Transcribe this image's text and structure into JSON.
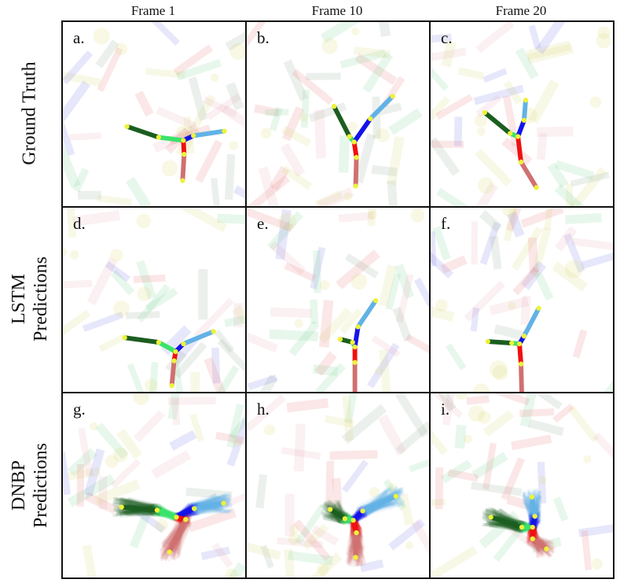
{
  "columns": [
    "Frame 1",
    "Frame 10",
    "Frame 20"
  ],
  "rows": [
    {
      "label_lines": [
        "Ground Truth"
      ]
    },
    {
      "label_lines": [
        "LSTM",
        "Predictions"
      ]
    },
    {
      "label_lines": [
        "DNBP",
        "Predictions"
      ]
    }
  ],
  "panels": [
    "a.",
    "b.",
    "c.",
    "d.",
    "e.",
    "f.",
    "g.",
    "h.",
    "i."
  ],
  "colors": {
    "dark_green_link": "#1b5e20",
    "light_green_link": "#39e36b",
    "blue_link": "#1414e8",
    "light_blue_link": "#62b2e6",
    "red_link": "#f01010",
    "pink_link": "#d07070",
    "joint": "#eef23a"
  }
}
